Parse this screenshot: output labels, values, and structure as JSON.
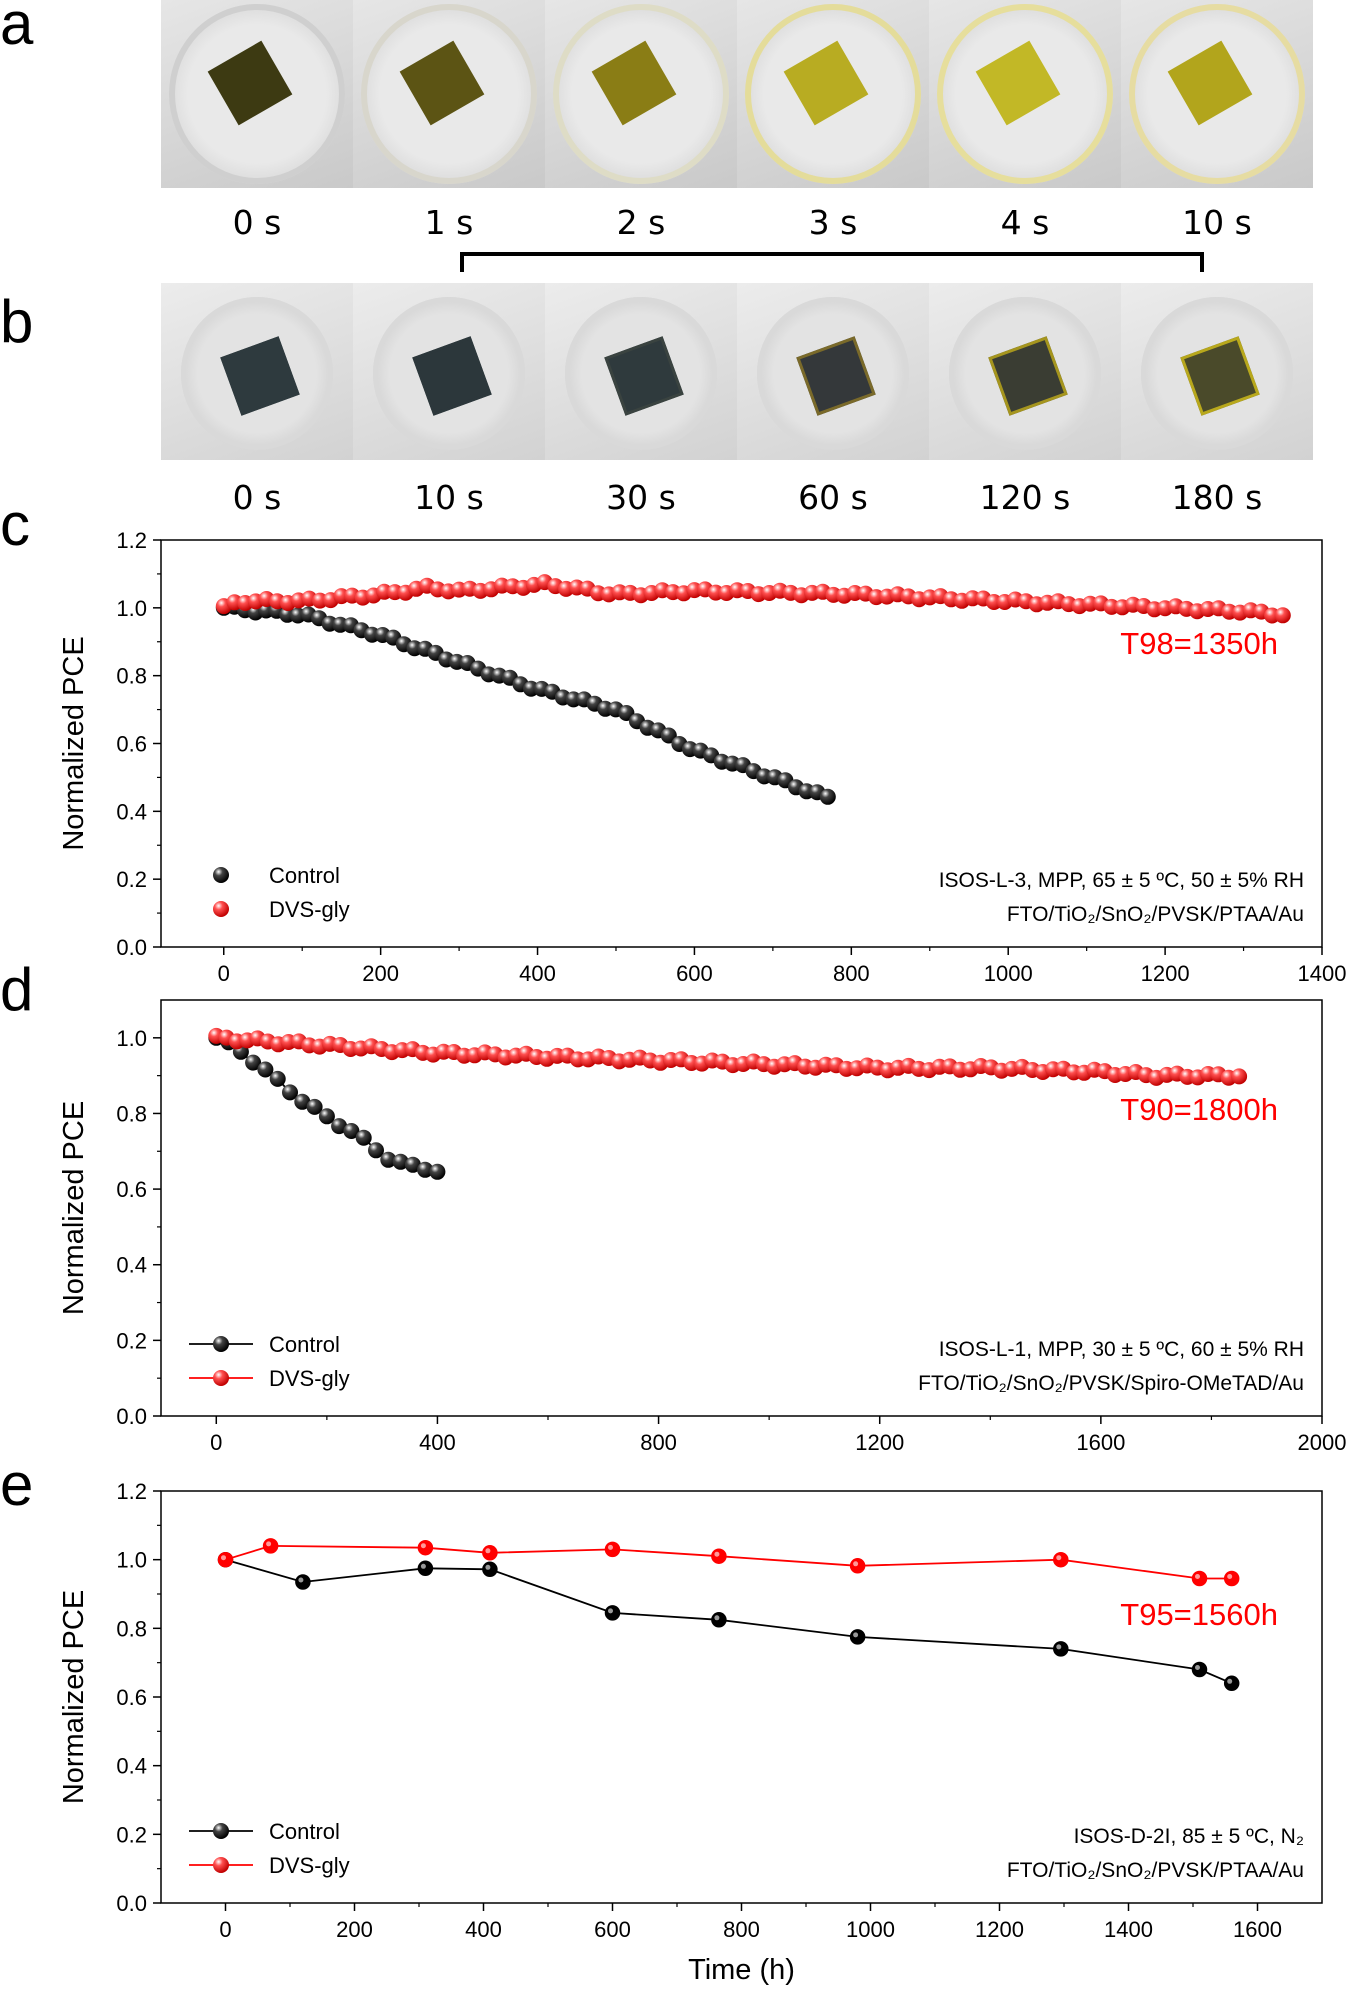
{
  "panels": {
    "a": "a",
    "b": "b",
    "c": "c",
    "d": "d",
    "e": "e"
  },
  "photos_a": {
    "times": [
      "0 s",
      "1 s",
      "2 s",
      "3 s",
      "4 s",
      "10 s"
    ],
    "film_colors": [
      "#3d3a12",
      "#5c5414",
      "#8a7d15",
      "#b8ac22",
      "#c2b826",
      "#b2a51c"
    ],
    "rim_colors": [
      "#cfcfcf",
      "#d8d6cc",
      "#dedcc6",
      "#e4dc9a",
      "#e6de9c",
      "#e6dca2"
    ]
  },
  "photos_b": {
    "times": [
      "0 s",
      "10 s",
      "30 s",
      "60 s",
      "120 s",
      "180 s"
    ],
    "film_colors": [
      "#2e3a3e",
      "#2c373b",
      "#2f3a3d",
      "#34383a",
      "#3a3d33",
      "#4a4a2a"
    ],
    "edge_colors": [
      "#2e3a3e",
      "#2c373b",
      "#3a4340",
      "#7a6a2a",
      "#a5951e",
      "#b8a81c"
    ]
  },
  "colors": {
    "control": "#000000",
    "dvs": "#ff0000",
    "annotation": "#ff0000"
  },
  "chart_data": [
    {
      "type": "scatter",
      "panel": "c",
      "xlabel": "",
      "ylabel": "Normalized PCE",
      "xlim": [
        -80,
        1400
      ],
      "ylim": [
        0,
        1.2
      ],
      "xticks": [
        0,
        200,
        400,
        600,
        800,
        1000,
        1200,
        1400
      ],
      "yticks": [
        0.0,
        0.2,
        0.4,
        0.6,
        0.8,
        1.0,
        1.2
      ],
      "ytick_labels": [
        "0.0",
        "0.2",
        "0.4",
        "0.6",
        "0.8",
        "1.0",
        "1.2"
      ],
      "legend": [
        "Control",
        "DVS-gly"
      ],
      "legend_lines": false,
      "annotation": "T98=1350h",
      "conditions": [
        "ISOS-L-3, MPP, 65 ± 5 ºC, 50 ± 5% RH",
        "FTO/TiO₂/SnO₂/PVSK/PTAA/Au"
      ],
      "series": [
        {
          "name": "Control",
          "curve": [
            [
              0,
              1.0
            ],
            [
              100,
              0.98
            ],
            [
              200,
              0.92
            ],
            [
              300,
              0.84
            ],
            [
              400,
              0.76
            ],
            [
              500,
              0.7
            ],
            [
              600,
              0.58
            ],
            [
              700,
              0.5
            ],
            [
              770,
              0.44
            ]
          ],
          "n": 58,
          "x0": 0,
          "x1": 770
        },
        {
          "name": "DVS-gly",
          "curve": [
            [
              0,
              1.0
            ],
            [
              20,
              1.02
            ],
            [
              100,
              1.02
            ],
            [
              200,
              1.04
            ],
            [
              260,
              1.06
            ],
            [
              300,
              1.05
            ],
            [
              410,
              1.07
            ],
            [
              500,
              1.04
            ],
            [
              600,
              1.05
            ],
            [
              800,
              1.04
            ],
            [
              900,
              1.03
            ],
            [
              1000,
              1.02
            ],
            [
              1100,
              1.01
            ],
            [
              1200,
              1.0
            ],
            [
              1300,
              0.99
            ],
            [
              1350,
              0.98
            ]
          ],
          "n": 100,
          "x0": 0,
          "x1": 1350
        }
      ]
    },
    {
      "type": "scatter",
      "panel": "d",
      "xlabel": "",
      "ylabel": "Normalized PCE",
      "xlim": [
        -100,
        2000
      ],
      "ylim": [
        0,
        1.1
      ],
      "xticks": [
        0,
        400,
        800,
        1200,
        1600,
        2000
      ],
      "yticks": [
        0.0,
        0.2,
        0.4,
        0.6,
        0.8,
        1.0
      ],
      "ytick_labels": [
        "0.0",
        "0.2",
        "0.4",
        "0.6",
        "0.8",
        "1.0"
      ],
      "legend": [
        "Control",
        "DVS-gly"
      ],
      "legend_lines": true,
      "annotation": "T90=1800h",
      "conditions": [
        "ISOS-L-1, MPP, 30 ± 5 ºC, 60 ± 5% RH",
        "FTO/TiO₂/SnO₂/PVSK/Spiro-OMeTAD/Au"
      ],
      "series": [
        {
          "name": "Control",
          "curve": [
            [
              0,
              1.0
            ],
            [
              50,
              0.96
            ],
            [
              100,
              0.9
            ],
            [
              150,
              0.84
            ],
            [
              200,
              0.79
            ],
            [
              250,
              0.75
            ],
            [
              300,
              0.69
            ],
            [
              350,
              0.66
            ],
            [
              400,
              0.65
            ]
          ],
          "n": 19,
          "x0": 0,
          "x1": 400
        },
        {
          "name": "DVS-gly",
          "curve": [
            [
              0,
              1.0
            ],
            [
              200,
              0.98
            ],
            [
              400,
              0.96
            ],
            [
              600,
              0.95
            ],
            [
              800,
              0.94
            ],
            [
              1000,
              0.93
            ],
            [
              1200,
              0.92
            ],
            [
              1400,
              0.92
            ],
            [
              1600,
              0.91
            ],
            [
              1700,
              0.9
            ],
            [
              1850,
              0.9
            ]
          ],
          "n": 100,
          "x0": 0,
          "x1": 1850
        }
      ]
    },
    {
      "type": "line",
      "panel": "e",
      "xlabel": "Time (h)",
      "ylabel": "Normalized PCE",
      "xlim": [
        -100,
        1700
      ],
      "ylim": [
        0,
        1.2
      ],
      "xticks": [
        0,
        200,
        400,
        600,
        800,
        1000,
        1200,
        1400,
        1600
      ],
      "yticks": [
        0.0,
        0.2,
        0.4,
        0.6,
        0.8,
        1.0,
        1.2
      ],
      "ytick_labels": [
        "0.0",
        "0.2",
        "0.4",
        "0.6",
        "0.8",
        "1.0",
        "1.2"
      ],
      "legend": [
        "Control",
        "DVS-gly"
      ],
      "legend_lines": true,
      "annotation": "T95=1560h",
      "conditions": [
        "ISOS-D-2I, 85 ± 5 ºC, N₂",
        "FTO/TiO₂/SnO₂/PVSK/PTAA/Au"
      ],
      "series": [
        {
          "name": "Control",
          "x": [
            0,
            120,
            310,
            410,
            600,
            765,
            980,
            1295,
            1510,
            1560
          ],
          "y": [
            1.0,
            0.935,
            0.975,
            0.972,
            0.845,
            0.825,
            0.775,
            0.74,
            0.68,
            0.64
          ]
        },
        {
          "name": "DVS-gly",
          "x": [
            0,
            70,
            310,
            410,
            600,
            765,
            980,
            1295,
            1510,
            1560
          ],
          "y": [
            1.0,
            1.04,
            1.035,
            1.02,
            1.03,
            1.01,
            0.982,
            1.0,
            0.945,
            0.945
          ]
        }
      ]
    }
  ]
}
